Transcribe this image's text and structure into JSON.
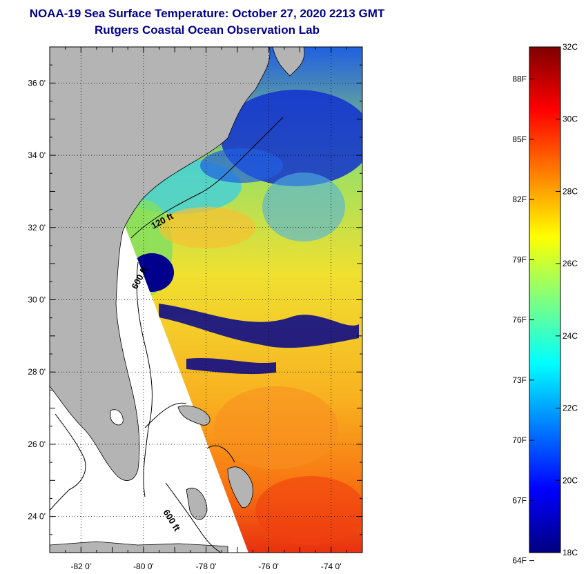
{
  "header": {
    "title": "NOAA-19 Sea Surface Temperature:  October 27, 2020 2213 GMT",
    "subtitle": "Rutgers Coastal Ocean Observation Lab"
  },
  "map": {
    "lon_range": [
      -83,
      -73
    ],
    "lat_range": [
      23,
      37
    ],
    "lon_ticks": [
      "-82 0'",
      "-80 0'",
      "-78 0'",
      "-76 0'",
      "-74 0'"
    ],
    "lat_ticks": [
      "36 0'",
      "34 0'",
      "32 0'",
      "30 0'",
      "28 0'",
      "26 0'",
      "24 0'"
    ],
    "depth_labels": [
      "120 ft",
      "600 ft",
      "600 ft"
    ],
    "land_color": "#b4b4b4",
    "cloud_color": "#00008c"
  },
  "colorbar": {
    "fahrenheit_labels": [
      "88F",
      "85F",
      "82F",
      "79F",
      "76F",
      "73F",
      "70F",
      "67F",
      "64F"
    ],
    "celsius_labels": [
      "32C",
      "30C",
      "28C",
      "26C",
      "24C",
      "22C",
      "20C",
      "18C"
    ],
    "colors": [
      "#00007f",
      "#0000ff",
      "#007fff",
      "#00ffff",
      "#7fff7f",
      "#ffff00",
      "#ff7f00",
      "#ff0000",
      "#7f0000"
    ]
  }
}
